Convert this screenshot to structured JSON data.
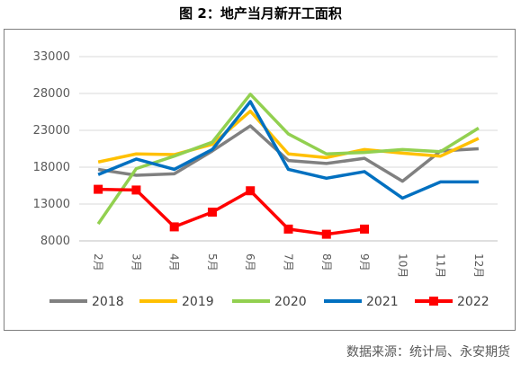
{
  "title": "图 2：地产当月新开工面积",
  "source": "数据来源：统计局、永安期货",
  "chart_data": {
    "type": "line",
    "title": "图 2：地产当月新开工面积",
    "categories": [
      "2月",
      "3月",
      "4月",
      "5月",
      "6月",
      "7月",
      "8月",
      "9月",
      "10月",
      "11月",
      "12月"
    ],
    "ylim": [
      8000,
      33000
    ],
    "yticks": [
      8000,
      13000,
      18000,
      23000,
      28000,
      33000
    ],
    "grid": "horizontal",
    "legend": "bottom",
    "series": [
      {
        "name": "2018",
        "color": "#808080",
        "marker": "none",
        "values": [
          17700,
          16900,
          17100,
          20200,
          23600,
          18900,
          18500,
          19200,
          16100,
          20200,
          20500
        ]
      },
      {
        "name": "2019",
        "color": "#ffc000",
        "marker": "none",
        "values": [
          18700,
          19800,
          19700,
          21100,
          25600,
          19800,
          19300,
          20400,
          19900,
          19500,
          21900
        ]
      },
      {
        "name": "2020",
        "color": "#92d050",
        "marker": "none",
        "values": [
          10300,
          17800,
          19500,
          21400,
          27900,
          22500,
          19800,
          20000,
          20400,
          20100,
          23300
        ]
      },
      {
        "name": "2021",
        "color": "#0070c0",
        "marker": "none",
        "values": [
          17000,
          19100,
          17700,
          20400,
          26900,
          17700,
          16500,
          17400,
          13800,
          16000,
          16000
        ]
      },
      {
        "name": "2022",
        "color": "#ff0000",
        "marker": "square",
        "values": [
          15000,
          14900,
          9900,
          11900,
          14800,
          9600,
          8900,
          9600,
          null,
          null,
          null
        ]
      }
    ]
  }
}
